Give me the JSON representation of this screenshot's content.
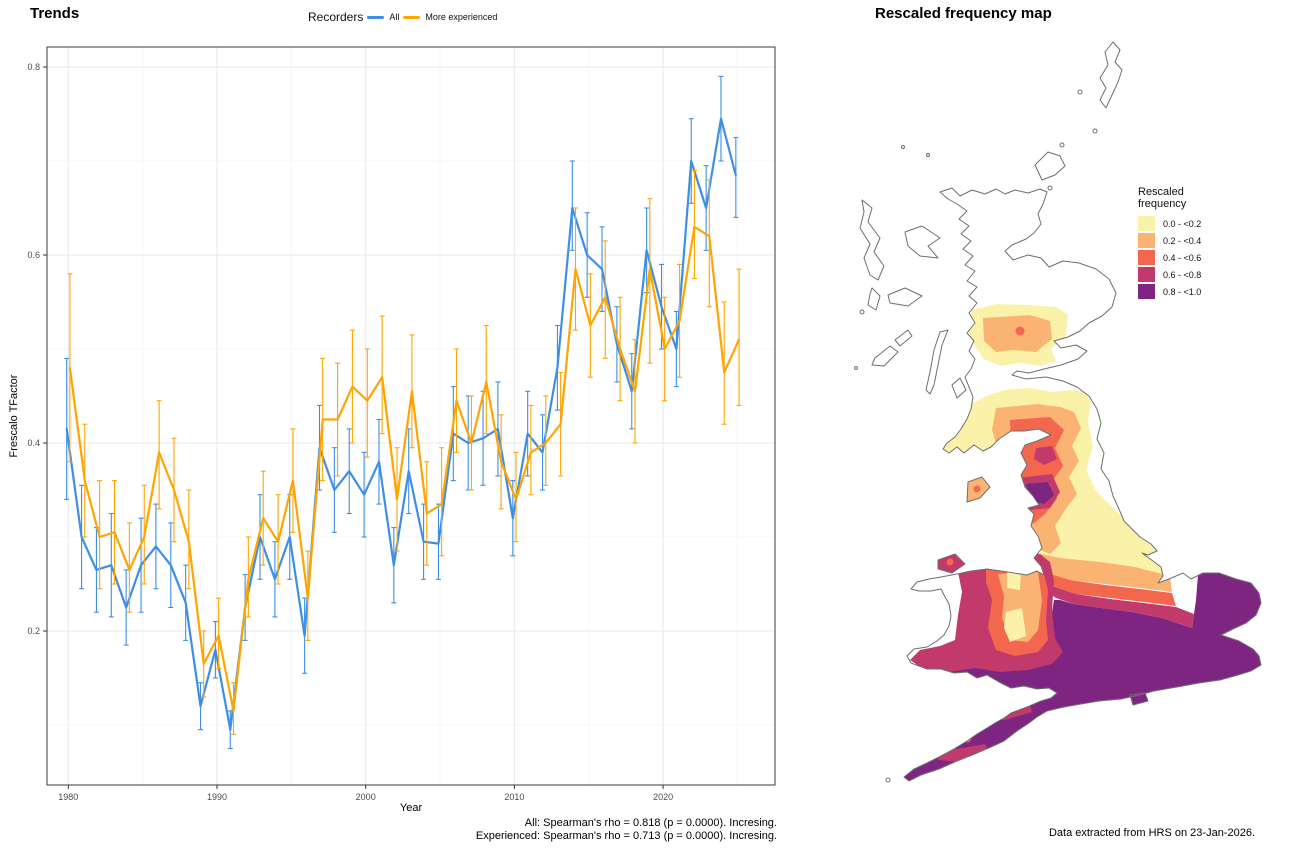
{
  "trends": {
    "title": "Trends",
    "legend_title": "Recorders",
    "xlabel": "Year",
    "ylabel": "Frescalo TFactor",
    "caption_line1": "All: Spearman's rho = 0.818 (p = 0.0000). Incresing.",
    "caption_line2": "Experienced: Spearman's rho = 0.713 (p = 0.0000). Incresing."
  },
  "map": {
    "title": "Rescaled frequency map",
    "legend_title_line1": "Rescaled",
    "legend_title_line2": "frequency",
    "caption": "Data extracted from HRS on 23-Jan-2026.",
    "bins": [
      {
        "label": "0.0 - <0.2",
        "color": "#FBF2A9"
      },
      {
        "label": "0.2 - <0.4",
        "color": "#FBB374"
      },
      {
        "label": "0.4 - <0.6",
        "color": "#F4674F"
      },
      {
        "label": "0.6 - <0.8",
        "color": "#C13A6B"
      },
      {
        "label": "0.8 - <1.0",
        "color": "#7E2582"
      }
    ],
    "coast_color": "#6E6E6E"
  },
  "chart_data": [
    {
      "type": "line",
      "title": "Trends",
      "xlabel": "Year",
      "ylabel": "Frescalo TFactor",
      "legend_title": "Recorders",
      "legend_position": "top",
      "grid": true,
      "x_ticks": [
        1980,
        1990,
        2000,
        2010,
        2020
      ],
      "y_ticks": [
        0.2,
        0.4,
        0.6,
        0.8
      ],
      "xlim": [
        1978.5,
        2027.5
      ],
      "ylim": [
        0.036,
        0.821
      ],
      "x": [
        1980,
        1981,
        1982,
        1983,
        1984,
        1985,
        1986,
        1987,
        1988,
        1989,
        1990,
        1991,
        1992,
        1993,
        1994,
        1995,
        1996,
        1997,
        1998,
        1999,
        2000,
        2001,
        2002,
        2003,
        2004,
        2005,
        2006,
        2007,
        2008,
        2009,
        2010,
        2011,
        2012,
        2013,
        2014,
        2015,
        2016,
        2017,
        2018,
        2019,
        2020,
        2021,
        2022,
        2023,
        2024,
        2025
      ],
      "series": [
        {
          "name": "All",
          "color": "#3D8FE6",
          "values": [
            0.415,
            0.3,
            0.265,
            0.27,
            0.225,
            0.27,
            0.29,
            0.27,
            0.23,
            0.12,
            0.18,
            0.095,
            0.225,
            0.3,
            0.255,
            0.3,
            0.195,
            0.395,
            0.35,
            0.37,
            0.345,
            0.38,
            0.27,
            0.37,
            0.295,
            0.293,
            0.41,
            0.4,
            0.405,
            0.415,
            0.32,
            0.41,
            0.39,
            0.48,
            0.65,
            0.6,
            0.585,
            0.505,
            0.455,
            0.605,
            0.545,
            0.5,
            0.7,
            0.65,
            0.745,
            0.685
          ],
          "lo": [
            0.34,
            0.245,
            0.22,
            0.215,
            0.185,
            0.22,
            0.245,
            0.225,
            0.19,
            0.095,
            0.15,
            0.075,
            0.19,
            0.255,
            0.215,
            0.255,
            0.155,
            0.35,
            0.305,
            0.325,
            0.3,
            0.335,
            0.23,
            0.325,
            0.255,
            0.255,
            0.36,
            0.35,
            0.355,
            0.365,
            0.28,
            0.365,
            0.35,
            0.435,
            0.605,
            0.555,
            0.54,
            0.465,
            0.415,
            0.56,
            0.5,
            0.46,
            0.655,
            0.605,
            0.7,
            0.64
          ],
          "hi": [
            0.49,
            0.355,
            0.31,
            0.325,
            0.265,
            0.32,
            0.335,
            0.315,
            0.27,
            0.145,
            0.21,
            0.115,
            0.26,
            0.345,
            0.295,
            0.345,
            0.235,
            0.44,
            0.395,
            0.415,
            0.39,
            0.425,
            0.31,
            0.415,
            0.335,
            0.335,
            0.46,
            0.45,
            0.455,
            0.465,
            0.36,
            0.455,
            0.43,
            0.525,
            0.7,
            0.645,
            0.63,
            0.545,
            0.495,
            0.65,
            0.59,
            0.54,
            0.745,
            0.695,
            0.79,
            0.725
          ]
        },
        {
          "name": "More experienced",
          "color": "#FFA502",
          "values": [
            0.48,
            0.36,
            0.3,
            0.305,
            0.265,
            0.3,
            0.39,
            0.35,
            0.295,
            0.165,
            0.195,
            0.115,
            0.255,
            0.32,
            0.295,
            0.36,
            0.235,
            0.425,
            0.425,
            0.46,
            0.445,
            0.47,
            0.34,
            0.455,
            0.325,
            0.335,
            0.445,
            0.4,
            0.465,
            0.38,
            0.34,
            0.39,
            0.4,
            0.42,
            0.585,
            0.525,
            0.555,
            0.5,
            0.455,
            0.585,
            0.5,
            0.53,
            0.63,
            0.62,
            0.475,
            0.51
          ],
          "lo": [
            0.38,
            0.3,
            0.245,
            0.25,
            0.22,
            0.25,
            0.33,
            0.295,
            0.245,
            0.13,
            0.16,
            0.09,
            0.215,
            0.27,
            0.25,
            0.305,
            0.19,
            0.36,
            0.365,
            0.4,
            0.385,
            0.41,
            0.285,
            0.395,
            0.27,
            0.28,
            0.39,
            0.35,
            0.41,
            0.33,
            0.295,
            0.345,
            0.355,
            0.365,
            0.52,
            0.47,
            0.49,
            0.445,
            0.4,
            0.485,
            0.445,
            0.47,
            0.575,
            0.545,
            0.42,
            0.44
          ],
          "hi": [
            0.58,
            0.42,
            0.36,
            0.36,
            0.315,
            0.355,
            0.445,
            0.405,
            0.35,
            0.2,
            0.235,
            0.145,
            0.3,
            0.37,
            0.345,
            0.415,
            0.285,
            0.49,
            0.485,
            0.52,
            0.5,
            0.535,
            0.395,
            0.515,
            0.38,
            0.395,
            0.5,
            0.45,
            0.525,
            0.43,
            0.39,
            0.44,
            0.45,
            0.475,
            0.65,
            0.58,
            0.615,
            0.555,
            0.51,
            0.66,
            0.555,
            0.59,
            0.69,
            0.68,
            0.55,
            0.585
          ]
        }
      ],
      "caption": [
        "All: Spearman's rho = 0.818 (p = 0.0000). Incresing.",
        "Experienced: Spearman's rho = 0.713 (p = 0.0000). Incresing."
      ]
    },
    {
      "type": "choropleth",
      "title": "Rescaled frequency map",
      "legend_title": "Rescaled frequency",
      "legend_position": "right",
      "bins": [
        "0.0 - <0.2",
        "0.2 - <0.4",
        "0.4 - <0.6",
        "0.6 - <0.8",
        "0.8 - <1.0"
      ],
      "bin_colors": [
        "#FBF2A9",
        "#FBB374",
        "#F4674F",
        "#C13A6B",
        "#7E2582"
      ],
      "region_summary": {
        "southern_england_and_south_wales": "0.8 - <1.0",
        "midlands_transition_bands": "0.2 - <0.8 gradient",
        "mid_wales_core": "0.0 - <0.2",
        "cumbria_lancashire_hotspot": "0.4 - <1.0",
        "northern_england_pennines": "0.0 - <0.6",
        "southern_scotland": "0.0 - <0.2 patches",
        "central_scotland_blob": "0.2 - <0.6",
        "isle_of_man": "0.2 - <0.6",
        "highlands_and_islands": "no data"
      },
      "caption": "Data extracted from HRS on 23-Jan-2026."
    }
  ]
}
